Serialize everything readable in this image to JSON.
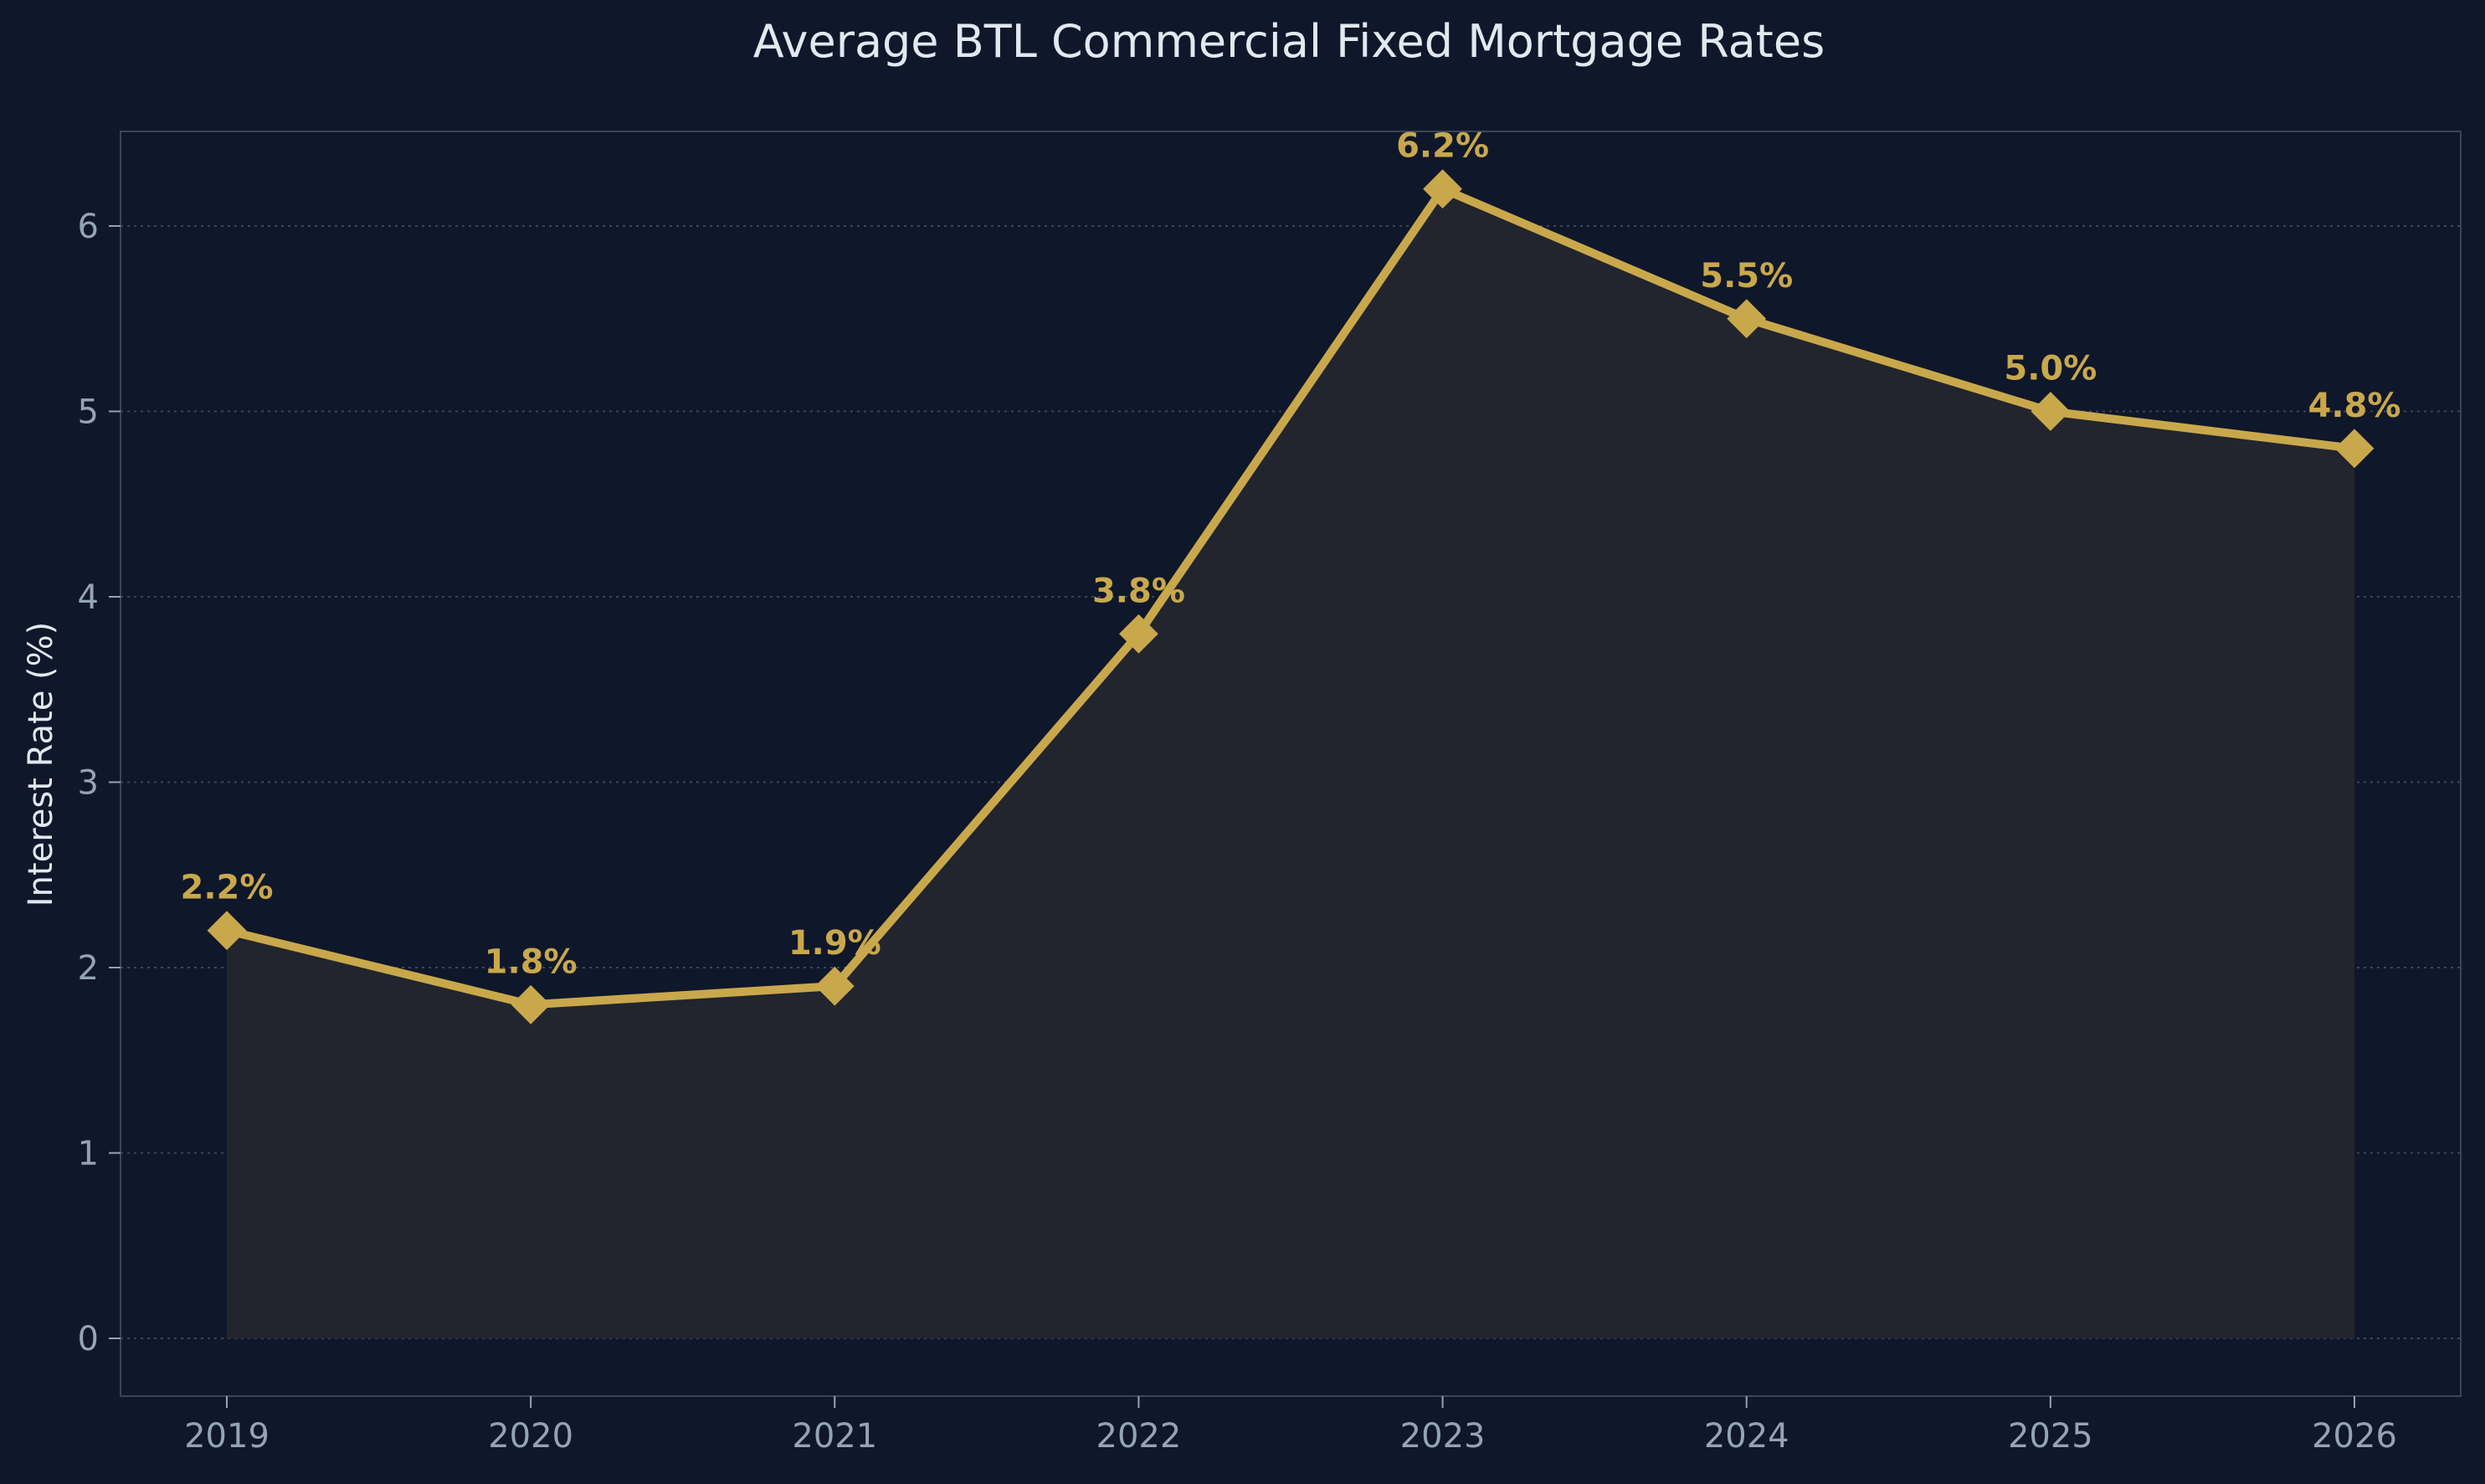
{
  "chart_data": {
    "type": "line",
    "title": "Average BTL Commercial Fixed Mortgage Rates",
    "xlabel": "",
    "ylabel": "Interest Rate (%)",
    "categories": [
      "2019",
      "2020",
      "2021",
      "2022",
      "2023",
      "2024",
      "2025",
      "2026"
    ],
    "values": [
      2.2,
      1.8,
      1.9,
      3.8,
      6.2,
      5.5,
      5.0,
      4.8
    ],
    "data_labels": [
      "2.2%",
      "1.8%",
      "1.9%",
      "3.8%",
      "6.2%",
      "5.5%",
      "5.0%",
      "4.8%"
    ],
    "y_ticks": [
      0,
      1,
      2,
      3,
      4,
      5,
      6
    ],
    "ylim": [
      -0.3,
      6.5
    ],
    "grid": "horizontal dotted",
    "marker": "diamond",
    "area_fill": true,
    "colors": {
      "background": "#0f172a",
      "line": "#c9a84c",
      "area": "#22252d",
      "grid": "#3b4558",
      "frame": "#3b4558",
      "text": "#e2e8f0",
      "tick_text": "#94a3b8"
    }
  }
}
